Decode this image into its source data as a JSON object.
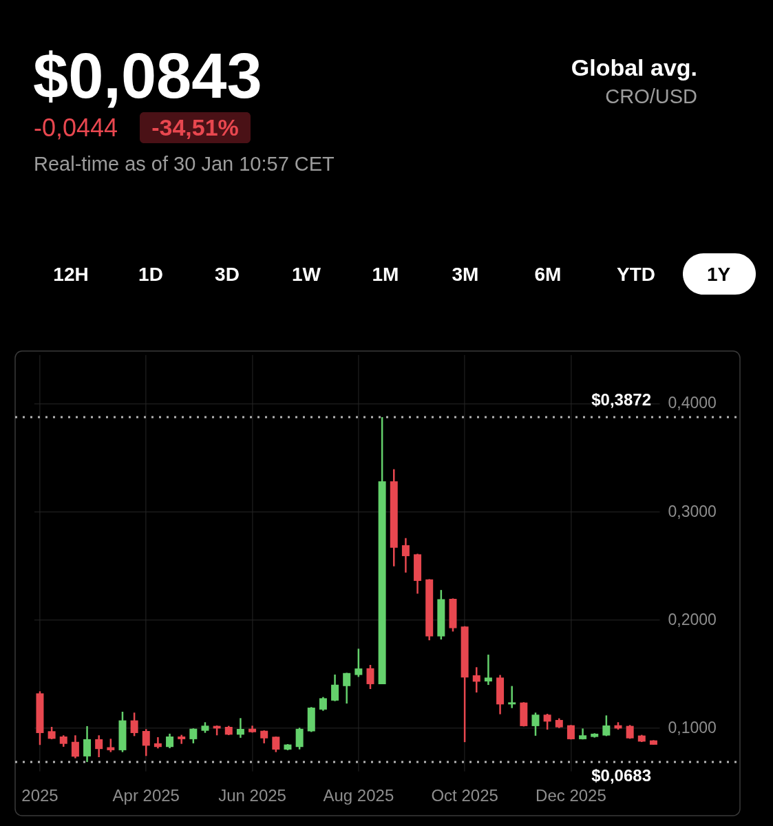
{
  "chart_data": {
    "type": "candlestick",
    "title": "$0,0843",
    "annotations": [
      "-0,0444",
      "-34,51%",
      "Real-time as of 30 Jan 10:57 CET",
      "Global avg.",
      "CRO/USD",
      "12H",
      "1D",
      "3D",
      "1W",
      "1M",
      "3M",
      "6M",
      "YTD",
      "1Y"
    ],
    "categories": [
      "2025",
      null,
      null,
      null,
      null,
      null,
      null,
      null,
      null,
      "Apr 2025",
      null,
      null,
      null,
      null,
      null,
      null,
      null,
      null,
      "Jun 2025",
      null,
      null,
      null,
      null,
      null,
      null,
      null,
      null,
      "Aug 2025",
      null,
      null,
      null,
      null,
      null,
      null,
      null,
      null,
      "Oct 2025",
      null,
      null,
      null,
      null,
      null,
      null,
      null,
      null,
      "Dec 2025",
      null,
      null,
      null,
      null,
      null,
      null,
      null
    ],
    "ohlc": [
      [
        0.1318,
        0.1337,
        0.0841,
        0.0951
      ],
      [
        0.0968,
        0.1008,
        0.0894,
        0.0898
      ],
      [
        0.0919,
        0.093,
        0.0824,
        0.0851
      ],
      [
        0.087,
        0.093,
        0.0718,
        0.0732
      ],
      [
        0.0735,
        0.1015,
        0.0683,
        0.0894
      ],
      [
        0.0894,
        0.093,
        0.0728,
        0.0803
      ],
      [
        0.082,
        0.0898,
        0.0775,
        0.0792
      ],
      [
        0.0792,
        0.1148,
        0.0775,
        0.1068
      ],
      [
        0.1068,
        0.114,
        0.0923,
        0.0951
      ],
      [
        0.097,
        0.0987,
        0.0739,
        0.0834
      ],
      [
        0.0856,
        0.0913,
        0.0809,
        0.0822
      ],
      [
        0.0822,
        0.0945,
        0.0811,
        0.0919
      ],
      [
        0.0919,
        0.0934,
        0.0851,
        0.0894
      ],
      [
        0.0894,
        0.0994,
        0.0856,
        0.0991
      ],
      [
        0.0972,
        0.1051,
        0.0953,
        0.1019
      ],
      [
        0.1017,
        0.1021,
        0.093,
        0.0993
      ],
      [
        0.1008,
        0.1017,
        0.0932,
        0.0936
      ],
      [
        0.0936,
        0.1089,
        0.0907,
        0.0989
      ],
      [
        0.0991,
        0.1019,
        0.0955,
        0.0959
      ],
      [
        0.0972,
        0.0976,
        0.0856,
        0.0902
      ],
      [
        0.0917,
        0.0919,
        0.0775,
        0.0798
      ],
      [
        0.0798,
        0.0849,
        0.0792,
        0.0845
      ],
      [
        0.0822,
        0.1,
        0.08,
        0.099
      ],
      [
        0.0967,
        0.1191,
        0.0961,
        0.1186
      ],
      [
        0.1168,
        0.1284,
        0.1157,
        0.1273
      ],
      [
        0.1251,
        0.1492,
        0.1246,
        0.1398
      ],
      [
        0.1385,
        0.1508,
        0.1224,
        0.1506
      ],
      [
        0.1488,
        0.1731,
        0.147,
        0.1548
      ],
      [
        0.155,
        0.1581,
        0.1358,
        0.1403
      ],
      [
        0.1403,
        0.3872,
        0.1403,
        0.3279
      ],
      [
        0.3279,
        0.3391,
        0.2493,
        0.2665
      ],
      [
        0.2688,
        0.2754,
        0.2435,
        0.2587
      ],
      [
        0.2604,
        0.2609,
        0.224,
        0.2358
      ],
      [
        0.2372,
        0.2374,
        0.1809,
        0.1845
      ],
      [
        0.1845,
        0.2274,
        0.1816,
        0.2189
      ],
      [
        0.2192,
        0.2196,
        0.189,
        0.1921
      ],
      [
        0.1936,
        0.1939,
        0.0867,
        0.1465
      ],
      [
        0.1485,
        0.156,
        0.1326,
        0.1426
      ],
      [
        0.1428,
        0.1676,
        0.1396,
        0.1464
      ],
      [
        0.1464,
        0.1488,
        0.1125,
        0.1216
      ],
      [
        0.1216,
        0.1386,
        0.1182,
        0.1235
      ],
      [
        0.1233,
        0.1236,
        0.1012,
        0.1015
      ],
      [
        0.1015,
        0.114,
        0.0926,
        0.1121
      ],
      [
        0.1121,
        0.1129,
        0.0983,
        0.1057
      ],
      [
        0.1072,
        0.1087,
        0.0997,
        0.1004
      ],
      [
        0.1023,
        0.1025,
        0.0892,
        0.0894
      ],
      [
        0.0894,
        0.0993,
        0.0892,
        0.093
      ],
      [
        0.0915,
        0.0949,
        0.0909,
        0.0945
      ],
      [
        0.0928,
        0.1114,
        0.0923,
        0.1021
      ],
      [
        0.1023,
        0.1051,
        0.0983,
        0.0993
      ],
      [
        0.1017,
        0.1025,
        0.0898,
        0.0902
      ],
      [
        0.0928,
        0.0934,
        0.0868,
        0.0872
      ],
      [
        0.0883,
        0.0885,
        0.0843,
        0.0843
      ]
    ],
    "colors": [
      "#e8474f",
      "#e8474f",
      "#e8474f",
      "#e8474f",
      "#64d16c",
      "#e8474f",
      "#e8474f",
      "#64d16c",
      "#e8474f",
      "#e8474f",
      "#e8474f",
      "#64d16c",
      "#e8474f",
      "#64d16c",
      "#64d16c",
      "#e8474f",
      "#e8474f",
      "#64d16c",
      "#e8474f",
      "#e8474f",
      "#e8474f",
      "#64d16c",
      "#64d16c",
      "#64d16c",
      "#64d16c",
      "#64d16c",
      "#64d16c",
      "#64d16c",
      "#e8474f",
      "#64d16c",
      "#e8474f",
      "#e8474f",
      "#e8474f",
      "#e8474f",
      "#64d16c",
      "#e8474f",
      "#e8474f",
      "#e8474f",
      "#64d16c",
      "#e8474f",
      "#64d16c",
      "#e8474f",
      "#64d16c",
      "#e8474f",
      "#e8474f",
      "#e8474f",
      "#64d16c",
      "#64d16c",
      "#64d16c",
      "#e8474f",
      "#e8474f",
      "#e8474f",
      "#e8474f"
    ],
    "ylim": [
      0.06,
      0.445
    ],
    "yticks": [
      {
        "value": 0.1,
        "label": "0,1000"
      },
      {
        "value": 0.2,
        "label": "0,2000"
      },
      {
        "value": 0.3,
        "label": "0,3000"
      },
      {
        "value": 0.4,
        "label": "0,4000"
      }
    ],
    "ref_lines": [
      {
        "axis": "y",
        "value": 0.3872,
        "label": "$0,3872",
        "color": "#b4b4b4",
        "line_style": "dotted"
      },
      {
        "axis": "y",
        "value": 0.0683,
        "label": "$0,0683",
        "color": "#b4b4b4",
        "line_style": "dotted"
      }
    ],
    "grid": true
  }
}
